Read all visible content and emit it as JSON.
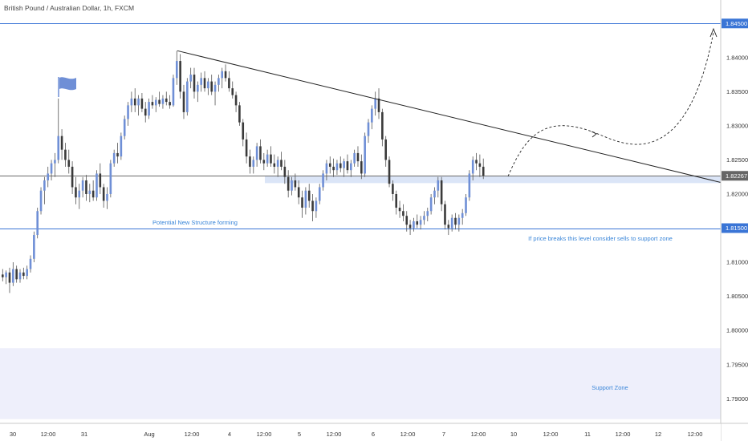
{
  "chart_data": {
    "type": "candlestick",
    "title": "British Pound / Australian Dollar, 1h, FXCM",
    "ylim": [
      1.7865,
      1.8475
    ],
    "y_ticks": [
      1.84,
      1.835,
      1.83,
      1.825,
      1.82,
      1.815,
      1.81,
      1.805,
      1.8,
      1.795,
      1.79
    ],
    "x_ticks": [
      "30",
      "12:00",
      "31",
      "Aug",
      "12:00",
      "4",
      "12:00",
      "5",
      "12:00",
      "6",
      "12:00",
      "7",
      "12:00",
      "10",
      "12:00",
      "11",
      "12:00",
      "12",
      "12:00"
    ],
    "grid": false,
    "levels": [
      {
        "price": 1.845,
        "label": "1.84500",
        "color": "#3a75d6"
      },
      {
        "price": 1.815,
        "label": "1.81500",
        "color": "#3a75d6"
      },
      {
        "price": 1.82267,
        "label": "1.82267",
        "color": "#6b6b6b"
      }
    ],
    "zones": [
      {
        "name": "Support Zone",
        "from": 1.787,
        "to": 1.7974,
        "color": "#eeeffb"
      },
      {
        "from": 1.8216,
        "to": 1.8227,
        "color": "#dbe5f7"
      }
    ],
    "annotations": [
      {
        "text": "Potential New Structure forming",
        "anchor": "left-middle"
      },
      {
        "text": "If price breaks this level consider sells to support zone",
        "anchor": "right-middle"
      },
      {
        "text": "Support Zone",
        "anchor": "bottom-right"
      }
    ],
    "trendline": {
      "from": {
        "x": "Aug 00:00",
        "y": 1.841
      },
      "to": {
        "x": "12 12:00",
        "y": 1.8217
      }
    },
    "candles": [
      {
        "o": 1.8082,
        "h": 1.809,
        "l": 1.8072,
        "c": 1.8078
      },
      {
        "o": 1.8078,
        "h": 1.8088,
        "l": 1.8068,
        "c": 1.8085
      },
      {
        "o": 1.8085,
        "h": 1.8092,
        "l": 1.8055,
        "c": 1.807
      },
      {
        "o": 1.807,
        "h": 1.81,
        "l": 1.8065,
        "c": 1.809
      },
      {
        "o": 1.809,
        "h": 1.8095,
        "l": 1.807,
        "c": 1.8075
      },
      {
        "o": 1.8075,
        "h": 1.809,
        "l": 1.807,
        "c": 1.8085
      },
      {
        "o": 1.8085,
        "h": 1.8092,
        "l": 1.8075,
        "c": 1.808
      },
      {
        "o": 1.808,
        "h": 1.8095,
        "l": 1.8075,
        "c": 1.809
      },
      {
        "o": 1.809,
        "h": 1.811,
        "l": 1.8085,
        "c": 1.8105
      },
      {
        "o": 1.8105,
        "h": 1.8145,
        "l": 1.81,
        "c": 1.814
      },
      {
        "o": 1.814,
        "h": 1.818,
        "l": 1.8135,
        "c": 1.8175
      },
      {
        "o": 1.8175,
        "h": 1.821,
        "l": 1.817,
        "c": 1.8205
      },
      {
        "o": 1.8205,
        "h": 1.8225,
        "l": 1.8185,
        "c": 1.822
      },
      {
        "o": 1.822,
        "h": 1.824,
        "l": 1.821,
        "c": 1.823
      },
      {
        "o": 1.823,
        "h": 1.825,
        "l": 1.822,
        "c": 1.8245
      },
      {
        "o": 1.8245,
        "h": 1.826,
        "l": 1.8225,
        "c": 1.825
      },
      {
        "o": 1.825,
        "h": 1.834,
        "l": 1.8245,
        "c": 1.8285
      },
      {
        "o": 1.8285,
        "h": 1.8295,
        "l": 1.825,
        "c": 1.8265
      },
      {
        "o": 1.8265,
        "h": 1.8275,
        "l": 1.824,
        "c": 1.825
      },
      {
        "o": 1.825,
        "h": 1.8265,
        "l": 1.823,
        "c": 1.824
      },
      {
        "o": 1.824,
        "h": 1.8248,
        "l": 1.82,
        "c": 1.821
      },
      {
        "o": 1.821,
        "h": 1.8225,
        "l": 1.8185,
        "c": 1.8195
      },
      {
        "o": 1.8195,
        "h": 1.8215,
        "l": 1.8178,
        "c": 1.8205
      },
      {
        "o": 1.8205,
        "h": 1.8225,
        "l": 1.8195,
        "c": 1.822
      },
      {
        "o": 1.822,
        "h": 1.8228,
        "l": 1.819,
        "c": 1.82
      },
      {
        "o": 1.82,
        "h": 1.8215,
        "l": 1.8188,
        "c": 1.8205
      },
      {
        "o": 1.8205,
        "h": 1.822,
        "l": 1.819,
        "c": 1.8195
      },
      {
        "o": 1.8195,
        "h": 1.8235,
        "l": 1.819,
        "c": 1.823
      },
      {
        "o": 1.823,
        "h": 1.8245,
        "l": 1.82,
        "c": 1.821
      },
      {
        "o": 1.821,
        "h": 1.8215,
        "l": 1.818,
        "c": 1.819
      },
      {
        "o": 1.819,
        "h": 1.821,
        "l": 1.8178,
        "c": 1.82
      },
      {
        "o": 1.82,
        "h": 1.825,
        "l": 1.8195,
        "c": 1.8245
      },
      {
        "o": 1.8245,
        "h": 1.8265,
        "l": 1.824,
        "c": 1.826
      },
      {
        "o": 1.826,
        "h": 1.8275,
        "l": 1.8245,
        "c": 1.8255
      },
      {
        "o": 1.8255,
        "h": 1.829,
        "l": 1.825,
        "c": 1.8285
      },
      {
        "o": 1.8285,
        "h": 1.8315,
        "l": 1.828,
        "c": 1.831
      },
      {
        "o": 1.831,
        "h": 1.8335,
        "l": 1.83,
        "c": 1.833
      },
      {
        "o": 1.833,
        "h": 1.835,
        "l": 1.832,
        "c": 1.834
      },
      {
        "o": 1.834,
        "h": 1.8355,
        "l": 1.832,
        "c": 1.833
      },
      {
        "o": 1.833,
        "h": 1.8345,
        "l": 1.8315,
        "c": 1.834
      },
      {
        "o": 1.834,
        "h": 1.8348,
        "l": 1.832,
        "c": 1.8325
      },
      {
        "o": 1.8325,
        "h": 1.8335,
        "l": 1.8305,
        "c": 1.8315
      },
      {
        "o": 1.8315,
        "h": 1.834,
        "l": 1.831,
        "c": 1.8335
      },
      {
        "o": 1.8335,
        "h": 1.8345,
        "l": 1.8325,
        "c": 1.833
      },
      {
        "o": 1.833,
        "h": 1.8342,
        "l": 1.832,
        "c": 1.8338
      },
      {
        "o": 1.8338,
        "h": 1.835,
        "l": 1.8328,
        "c": 1.8332
      },
      {
        "o": 1.8332,
        "h": 1.8345,
        "l": 1.8325,
        "c": 1.834
      },
      {
        "o": 1.834,
        "h": 1.835,
        "l": 1.833,
        "c": 1.8335
      },
      {
        "o": 1.8335,
        "h": 1.8345,
        "l": 1.8325,
        "c": 1.833
      },
      {
        "o": 1.833,
        "h": 1.8375,
        "l": 1.8328,
        "c": 1.837
      },
      {
        "o": 1.837,
        "h": 1.841,
        "l": 1.836,
        "c": 1.8395
      },
      {
        "o": 1.8395,
        "h": 1.8405,
        "l": 1.834,
        "c": 1.835
      },
      {
        "o": 1.835,
        "h": 1.836,
        "l": 1.831,
        "c": 1.832
      },
      {
        "o": 1.832,
        "h": 1.837,
        "l": 1.8315,
        "c": 1.8365
      },
      {
        "o": 1.8365,
        "h": 1.8385,
        "l": 1.8355,
        "c": 1.8375
      },
      {
        "o": 1.8375,
        "h": 1.8385,
        "l": 1.834,
        "c": 1.835
      },
      {
        "o": 1.835,
        "h": 1.8365,
        "l": 1.8335,
        "c": 1.836
      },
      {
        "o": 1.836,
        "h": 1.8378,
        "l": 1.835,
        "c": 1.837
      },
      {
        "o": 1.837,
        "h": 1.838,
        "l": 1.835,
        "c": 1.8355
      },
      {
        "o": 1.8355,
        "h": 1.837,
        "l": 1.8345,
        "c": 1.8365
      },
      {
        "o": 1.8365,
        "h": 1.8375,
        "l": 1.8345,
        "c": 1.835
      },
      {
        "o": 1.835,
        "h": 1.8365,
        "l": 1.833,
        "c": 1.836
      },
      {
        "o": 1.836,
        "h": 1.8375,
        "l": 1.835,
        "c": 1.837
      },
      {
        "o": 1.837,
        "h": 1.8385,
        "l": 1.8355,
        "c": 1.838
      },
      {
        "o": 1.838,
        "h": 1.839,
        "l": 1.8365,
        "c": 1.837
      },
      {
        "o": 1.837,
        "h": 1.838,
        "l": 1.835,
        "c": 1.8355
      },
      {
        "o": 1.8355,
        "h": 1.8365,
        "l": 1.834,
        "c": 1.8345
      },
      {
        "o": 1.8345,
        "h": 1.835,
        "l": 1.832,
        "c": 1.833
      },
      {
        "o": 1.833,
        "h": 1.8335,
        "l": 1.83,
        "c": 1.8305
      },
      {
        "o": 1.8305,
        "h": 1.831,
        "l": 1.827,
        "c": 1.828
      },
      {
        "o": 1.828,
        "h": 1.829,
        "l": 1.8245,
        "c": 1.8255
      },
      {
        "o": 1.8255,
        "h": 1.8265,
        "l": 1.823,
        "c": 1.824
      },
      {
        "o": 1.824,
        "h": 1.8255,
        "l": 1.823,
        "c": 1.825
      },
      {
        "o": 1.825,
        "h": 1.8275,
        "l": 1.824,
        "c": 1.827
      },
      {
        "o": 1.827,
        "h": 1.828,
        "l": 1.8245,
        "c": 1.825
      },
      {
        "o": 1.825,
        "h": 1.826,
        "l": 1.8235,
        "c": 1.8245
      },
      {
        "o": 1.8245,
        "h": 1.8265,
        "l": 1.824,
        "c": 1.8258
      },
      {
        "o": 1.8258,
        "h": 1.827,
        "l": 1.824,
        "c": 1.8245
      },
      {
        "o": 1.8245,
        "h": 1.8258,
        "l": 1.823,
        "c": 1.824
      },
      {
        "o": 1.824,
        "h": 1.8255,
        "l": 1.8225,
        "c": 1.825
      },
      {
        "o": 1.825,
        "h": 1.8262,
        "l": 1.8235,
        "c": 1.824
      },
      {
        "o": 1.824,
        "h": 1.825,
        "l": 1.8215,
        "c": 1.8225
      },
      {
        "o": 1.8225,
        "h": 1.8235,
        "l": 1.8195,
        "c": 1.8205
      },
      {
        "o": 1.8205,
        "h": 1.8225,
        "l": 1.8198,
        "c": 1.822
      },
      {
        "o": 1.822,
        "h": 1.823,
        "l": 1.8205,
        "c": 1.821
      },
      {
        "o": 1.821,
        "h": 1.822,
        "l": 1.8185,
        "c": 1.8195
      },
      {
        "o": 1.8195,
        "h": 1.8205,
        "l": 1.8165,
        "c": 1.818
      },
      {
        "o": 1.818,
        "h": 1.821,
        "l": 1.817,
        "c": 1.8205
      },
      {
        "o": 1.8205,
        "h": 1.8215,
        "l": 1.818,
        "c": 1.819
      },
      {
        "o": 1.819,
        "h": 1.82,
        "l": 1.816,
        "c": 1.8175
      },
      {
        "o": 1.8175,
        "h": 1.8195,
        "l": 1.8165,
        "c": 1.819
      },
      {
        "o": 1.819,
        "h": 1.8215,
        "l": 1.8185,
        "c": 1.821
      },
      {
        "o": 1.821,
        "h": 1.8235,
        "l": 1.8205,
        "c": 1.823
      },
      {
        "o": 1.823,
        "h": 1.825,
        "l": 1.822,
        "c": 1.8245
      },
      {
        "o": 1.8245,
        "h": 1.8255,
        "l": 1.823,
        "c": 1.824
      },
      {
        "o": 1.824,
        "h": 1.8252,
        "l": 1.8225,
        "c": 1.8235
      },
      {
        "o": 1.8235,
        "h": 1.825,
        "l": 1.8228,
        "c": 1.8245
      },
      {
        "o": 1.8245,
        "h": 1.8255,
        "l": 1.8232,
        "c": 1.8238
      },
      {
        "o": 1.8238,
        "h": 1.8252,
        "l": 1.8225,
        "c": 1.8248
      },
      {
        "o": 1.8248,
        "h": 1.8258,
        "l": 1.823,
        "c": 1.8235
      },
      {
        "o": 1.8235,
        "h": 1.825,
        "l": 1.8225,
        "c": 1.8245
      },
      {
        "o": 1.8245,
        "h": 1.8265,
        "l": 1.824,
        "c": 1.826
      },
      {
        "o": 1.826,
        "h": 1.827,
        "l": 1.824,
        "c": 1.8248
      },
      {
        "o": 1.8248,
        "h": 1.8258,
        "l": 1.8222,
        "c": 1.823
      },
      {
        "o": 1.823,
        "h": 1.829,
        "l": 1.8225,
        "c": 1.8285
      },
      {
        "o": 1.8285,
        "h": 1.831,
        "l": 1.8275,
        "c": 1.8305
      },
      {
        "o": 1.8305,
        "h": 1.833,
        "l": 1.8295,
        "c": 1.8325
      },
      {
        "o": 1.8325,
        "h": 1.835,
        "l": 1.8315,
        "c": 1.834
      },
      {
        "o": 1.834,
        "h": 1.8355,
        "l": 1.831,
        "c": 1.832
      },
      {
        "o": 1.832,
        "h": 1.8325,
        "l": 1.827,
        "c": 1.828
      },
      {
        "o": 1.828,
        "h": 1.8285,
        "l": 1.824,
        "c": 1.825
      },
      {
        "o": 1.825,
        "h": 1.8255,
        "l": 1.821,
        "c": 1.8215
      },
      {
        "o": 1.8215,
        "h": 1.822,
        "l": 1.819,
        "c": 1.82
      },
      {
        "o": 1.82,
        "h": 1.8205,
        "l": 1.817,
        "c": 1.818
      },
      {
        "o": 1.818,
        "h": 1.819,
        "l": 1.8165,
        "c": 1.8175
      },
      {
        "o": 1.8175,
        "h": 1.8185,
        "l": 1.816,
        "c": 1.8168
      },
      {
        "o": 1.8168,
        "h": 1.8175,
        "l": 1.8145,
        "c": 1.8155
      },
      {
        "o": 1.8155,
        "h": 1.8162,
        "l": 1.814,
        "c": 1.815
      },
      {
        "o": 1.815,
        "h": 1.8165,
        "l": 1.8145,
        "c": 1.816
      },
      {
        "o": 1.816,
        "h": 1.817,
        "l": 1.815,
        "c": 1.8155
      },
      {
        "o": 1.8155,
        "h": 1.8168,
        "l": 1.8148,
        "c": 1.8162
      },
      {
        "o": 1.8162,
        "h": 1.8175,
        "l": 1.8155,
        "c": 1.8168
      },
      {
        "o": 1.8168,
        "h": 1.818,
        "l": 1.816,
        "c": 1.8175
      },
      {
        "o": 1.8175,
        "h": 1.82,
        "l": 1.817,
        "c": 1.8195
      },
      {
        "o": 1.8195,
        "h": 1.821,
        "l": 1.8185,
        "c": 1.8205
      },
      {
        "o": 1.8205,
        "h": 1.8225,
        "l": 1.8195,
        "c": 1.822
      },
      {
        "o": 1.822,
        "h": 1.8225,
        "l": 1.8175,
        "c": 1.8185
      },
      {
        "o": 1.8185,
        "h": 1.819,
        "l": 1.8148,
        "c": 1.8155
      },
      {
        "o": 1.8155,
        "h": 1.8162,
        "l": 1.814,
        "c": 1.815
      },
      {
        "o": 1.815,
        "h": 1.817,
        "l": 1.8145,
        "c": 1.8165
      },
      {
        "o": 1.8165,
        "h": 1.8172,
        "l": 1.8148,
        "c": 1.8155
      },
      {
        "o": 1.8155,
        "h": 1.817,
        "l": 1.8145,
        "c": 1.8165
      },
      {
        "o": 1.8165,
        "h": 1.8178,
        "l": 1.8155,
        "c": 1.8172
      },
      {
        "o": 1.8172,
        "h": 1.82,
        "l": 1.8168,
        "c": 1.8195
      },
      {
        "o": 1.8195,
        "h": 1.8235,
        "l": 1.819,
        "c": 1.823
      },
      {
        "o": 1.823,
        "h": 1.8255,
        "l": 1.822,
        "c": 1.825
      },
      {
        "o": 1.825,
        "h": 1.826,
        "l": 1.8235,
        "c": 1.8245
      },
      {
        "o": 1.8245,
        "h": 1.8258,
        "l": 1.8225,
        "c": 1.824
      },
      {
        "o": 1.824,
        "h": 1.8252,
        "l": 1.8222,
        "c": 1.8227
      }
    ]
  },
  "price_scale": {
    "tick_labels": [
      "1.84000",
      "1.83500",
      "1.83000",
      "1.82500",
      "1.82000",
      "1.81500",
      "1.81000",
      "1.80500",
      "1.80000",
      "1.79500",
      "1.79000"
    ],
    "level_labels": [
      "1.84500",
      "1.82267",
      "1.81500"
    ]
  },
  "annotations": {
    "structure_note": "Potential New Structure forming",
    "sell_note": "If price breaks this level consider sells to support zone",
    "support_label": "Support Zone"
  },
  "colors": {
    "up_body": "#6f8fd6",
    "down_body": "#3a3a3a",
    "wick": "#555555",
    "level_line": "#3a75d6",
    "current_price_line": "#7a7a7a",
    "current_price_badge": "#666666",
    "level_badge": "#3a75d6",
    "support_zone": "#eeeffb",
    "retest_zone": "#dbe5f7",
    "annotation_text": "#3a86d9",
    "trendline": "#222222",
    "projection": "#222222",
    "flag": "#6f8fd6"
  },
  "icons": {
    "flag": "flag-icon",
    "projection_arrow": "arrow-up-icon"
  }
}
